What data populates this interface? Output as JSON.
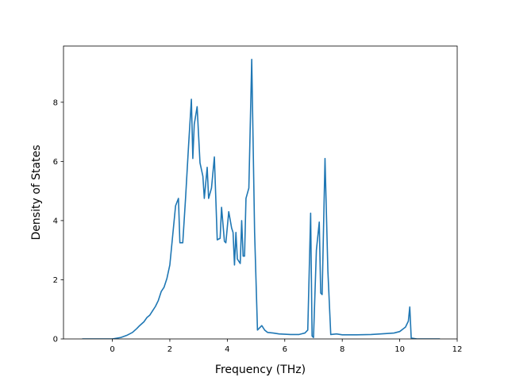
{
  "chart_data": {
    "type": "line",
    "xlabel": "Frequency (THz)",
    "ylabel": "Density of States",
    "xlim": [
      -1.7,
      12
    ],
    "ylim": [
      0,
      9.9
    ],
    "xticks": [
      0,
      2,
      4,
      6,
      8,
      10,
      12
    ],
    "yticks": [
      0,
      2,
      4,
      6,
      8
    ],
    "grid": false,
    "line_color": "#1f77b4",
    "series": [
      {
        "x": [
          -1.05,
          -0.5,
          0.0,
          0.3,
          0.5,
          0.7,
          0.85,
          0.95,
          1.1,
          1.2,
          1.3,
          1.4,
          1.5,
          1.6,
          1.7,
          1.8,
          1.9,
          2.0,
          2.1,
          2.2,
          2.3,
          2.35,
          2.45,
          2.55,
          2.65,
          2.75,
          2.8,
          2.85,
          2.95,
          3.05,
          3.15,
          3.2,
          3.3,
          3.35,
          3.45,
          3.55,
          3.65,
          3.75,
          3.8,
          3.9,
          3.95,
          4.05,
          4.15,
          4.2,
          4.25,
          4.3,
          4.35,
          4.45,
          4.5,
          4.55,
          4.6,
          4.65,
          4.75,
          4.85,
          4.95,
          5.05,
          5.2,
          5.3,
          5.4,
          5.6,
          5.8,
          6.0,
          6.2,
          6.5,
          6.7,
          6.8,
          6.9,
          6.95,
          7.0,
          7.1,
          7.2,
          7.25,
          7.3,
          7.4,
          7.5,
          7.6,
          7.8,
          8.0,
          8.5,
          9.0,
          9.5,
          9.8,
          10.0,
          10.2,
          10.3,
          10.35,
          10.4,
          10.6,
          11.4
        ],
        "y": [
          0.0,
          0.0,
          0.0,
          0.05,
          0.12,
          0.22,
          0.35,
          0.45,
          0.58,
          0.72,
          0.8,
          0.95,
          1.1,
          1.3,
          1.6,
          1.75,
          2.05,
          2.5,
          3.5,
          4.5,
          4.75,
          3.25,
          3.25,
          4.8,
          6.5,
          8.1,
          6.1,
          7.25,
          7.85,
          5.95,
          5.5,
          4.75,
          5.8,
          4.75,
          5.1,
          6.15,
          3.35,
          3.4,
          4.45,
          3.3,
          3.25,
          4.3,
          3.75,
          3.6,
          2.5,
          3.6,
          2.7,
          2.55,
          4.0,
          2.8,
          2.8,
          4.75,
          5.1,
          9.45,
          3.6,
          0.3,
          0.45,
          0.3,
          0.22,
          0.2,
          0.17,
          0.16,
          0.15,
          0.15,
          0.2,
          0.3,
          4.25,
          0.1,
          0.05,
          3.0,
          3.95,
          1.55,
          1.5,
          6.1,
          2.3,
          0.15,
          0.17,
          0.14,
          0.14,
          0.15,
          0.18,
          0.2,
          0.25,
          0.4,
          0.6,
          1.08,
          0.03,
          0.0,
          0.0
        ]
      }
    ]
  }
}
